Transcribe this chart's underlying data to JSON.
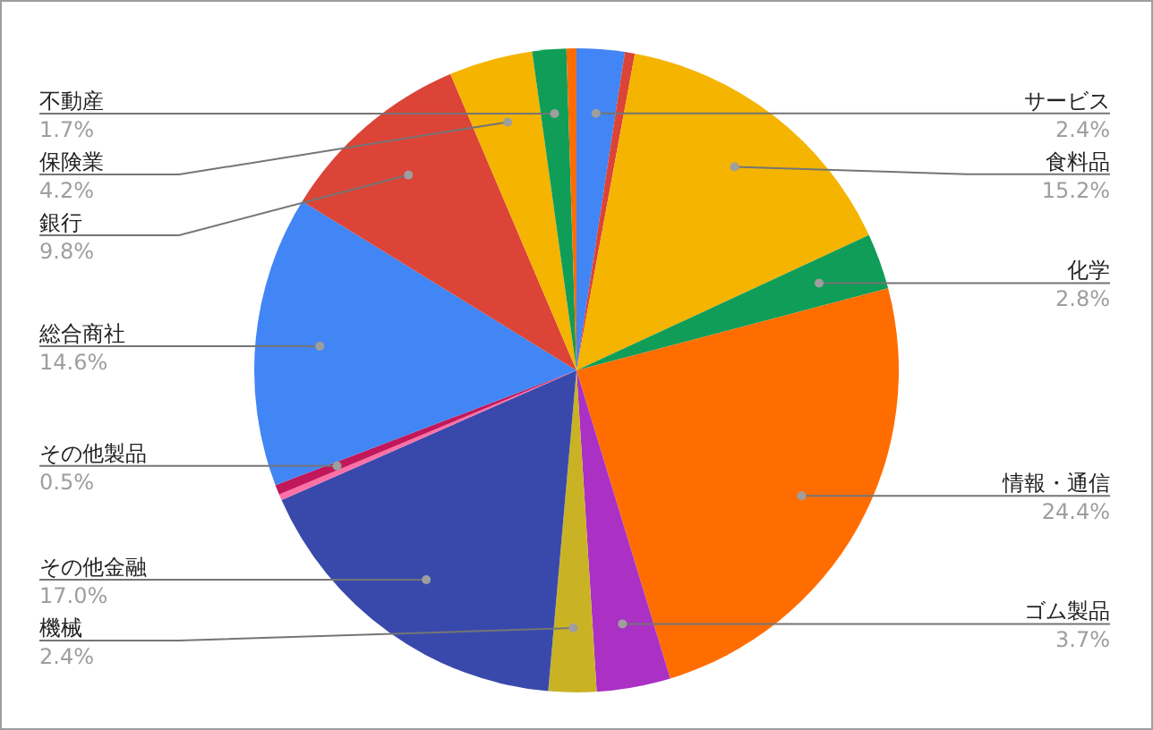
{
  "chart_data": {
    "type": "pie",
    "categories": [
      "サービス",
      null,
      "食料品",
      "化学",
      "情報・通信",
      "ゴム製品",
      "機械",
      "その他金融",
      null,
      "その他製品",
      "総合商社",
      "銀行",
      "保険業",
      "不動産",
      null
    ],
    "values": [
      2.4,
      0.5,
      15.2,
      2.8,
      24.4,
      3.7,
      2.4,
      17.0,
      0.3,
      0.5,
      14.6,
      9.8,
      4.2,
      1.7,
      0.5
    ],
    "value_labels": [
      "2.4%",
      null,
      "15.2%",
      "2.8%",
      "24.4%",
      "3.7%",
      "2.4%",
      "17.0%",
      null,
      "0.5%",
      "14.6%",
      "9.8%",
      "4.2%",
      "1.7%",
      null
    ],
    "colors": [
      "#4285f4",
      "#db4437",
      "#f4b400",
      "#0f9d58",
      "#ff6d00",
      "#ab30c4",
      "#c9b325",
      "#3949ab",
      "#ff70a6",
      "#c2185b",
      "#4285f4",
      "#db4437",
      "#f4b400",
      "#0f9d58",
      "#ff6d00"
    ]
  }
}
